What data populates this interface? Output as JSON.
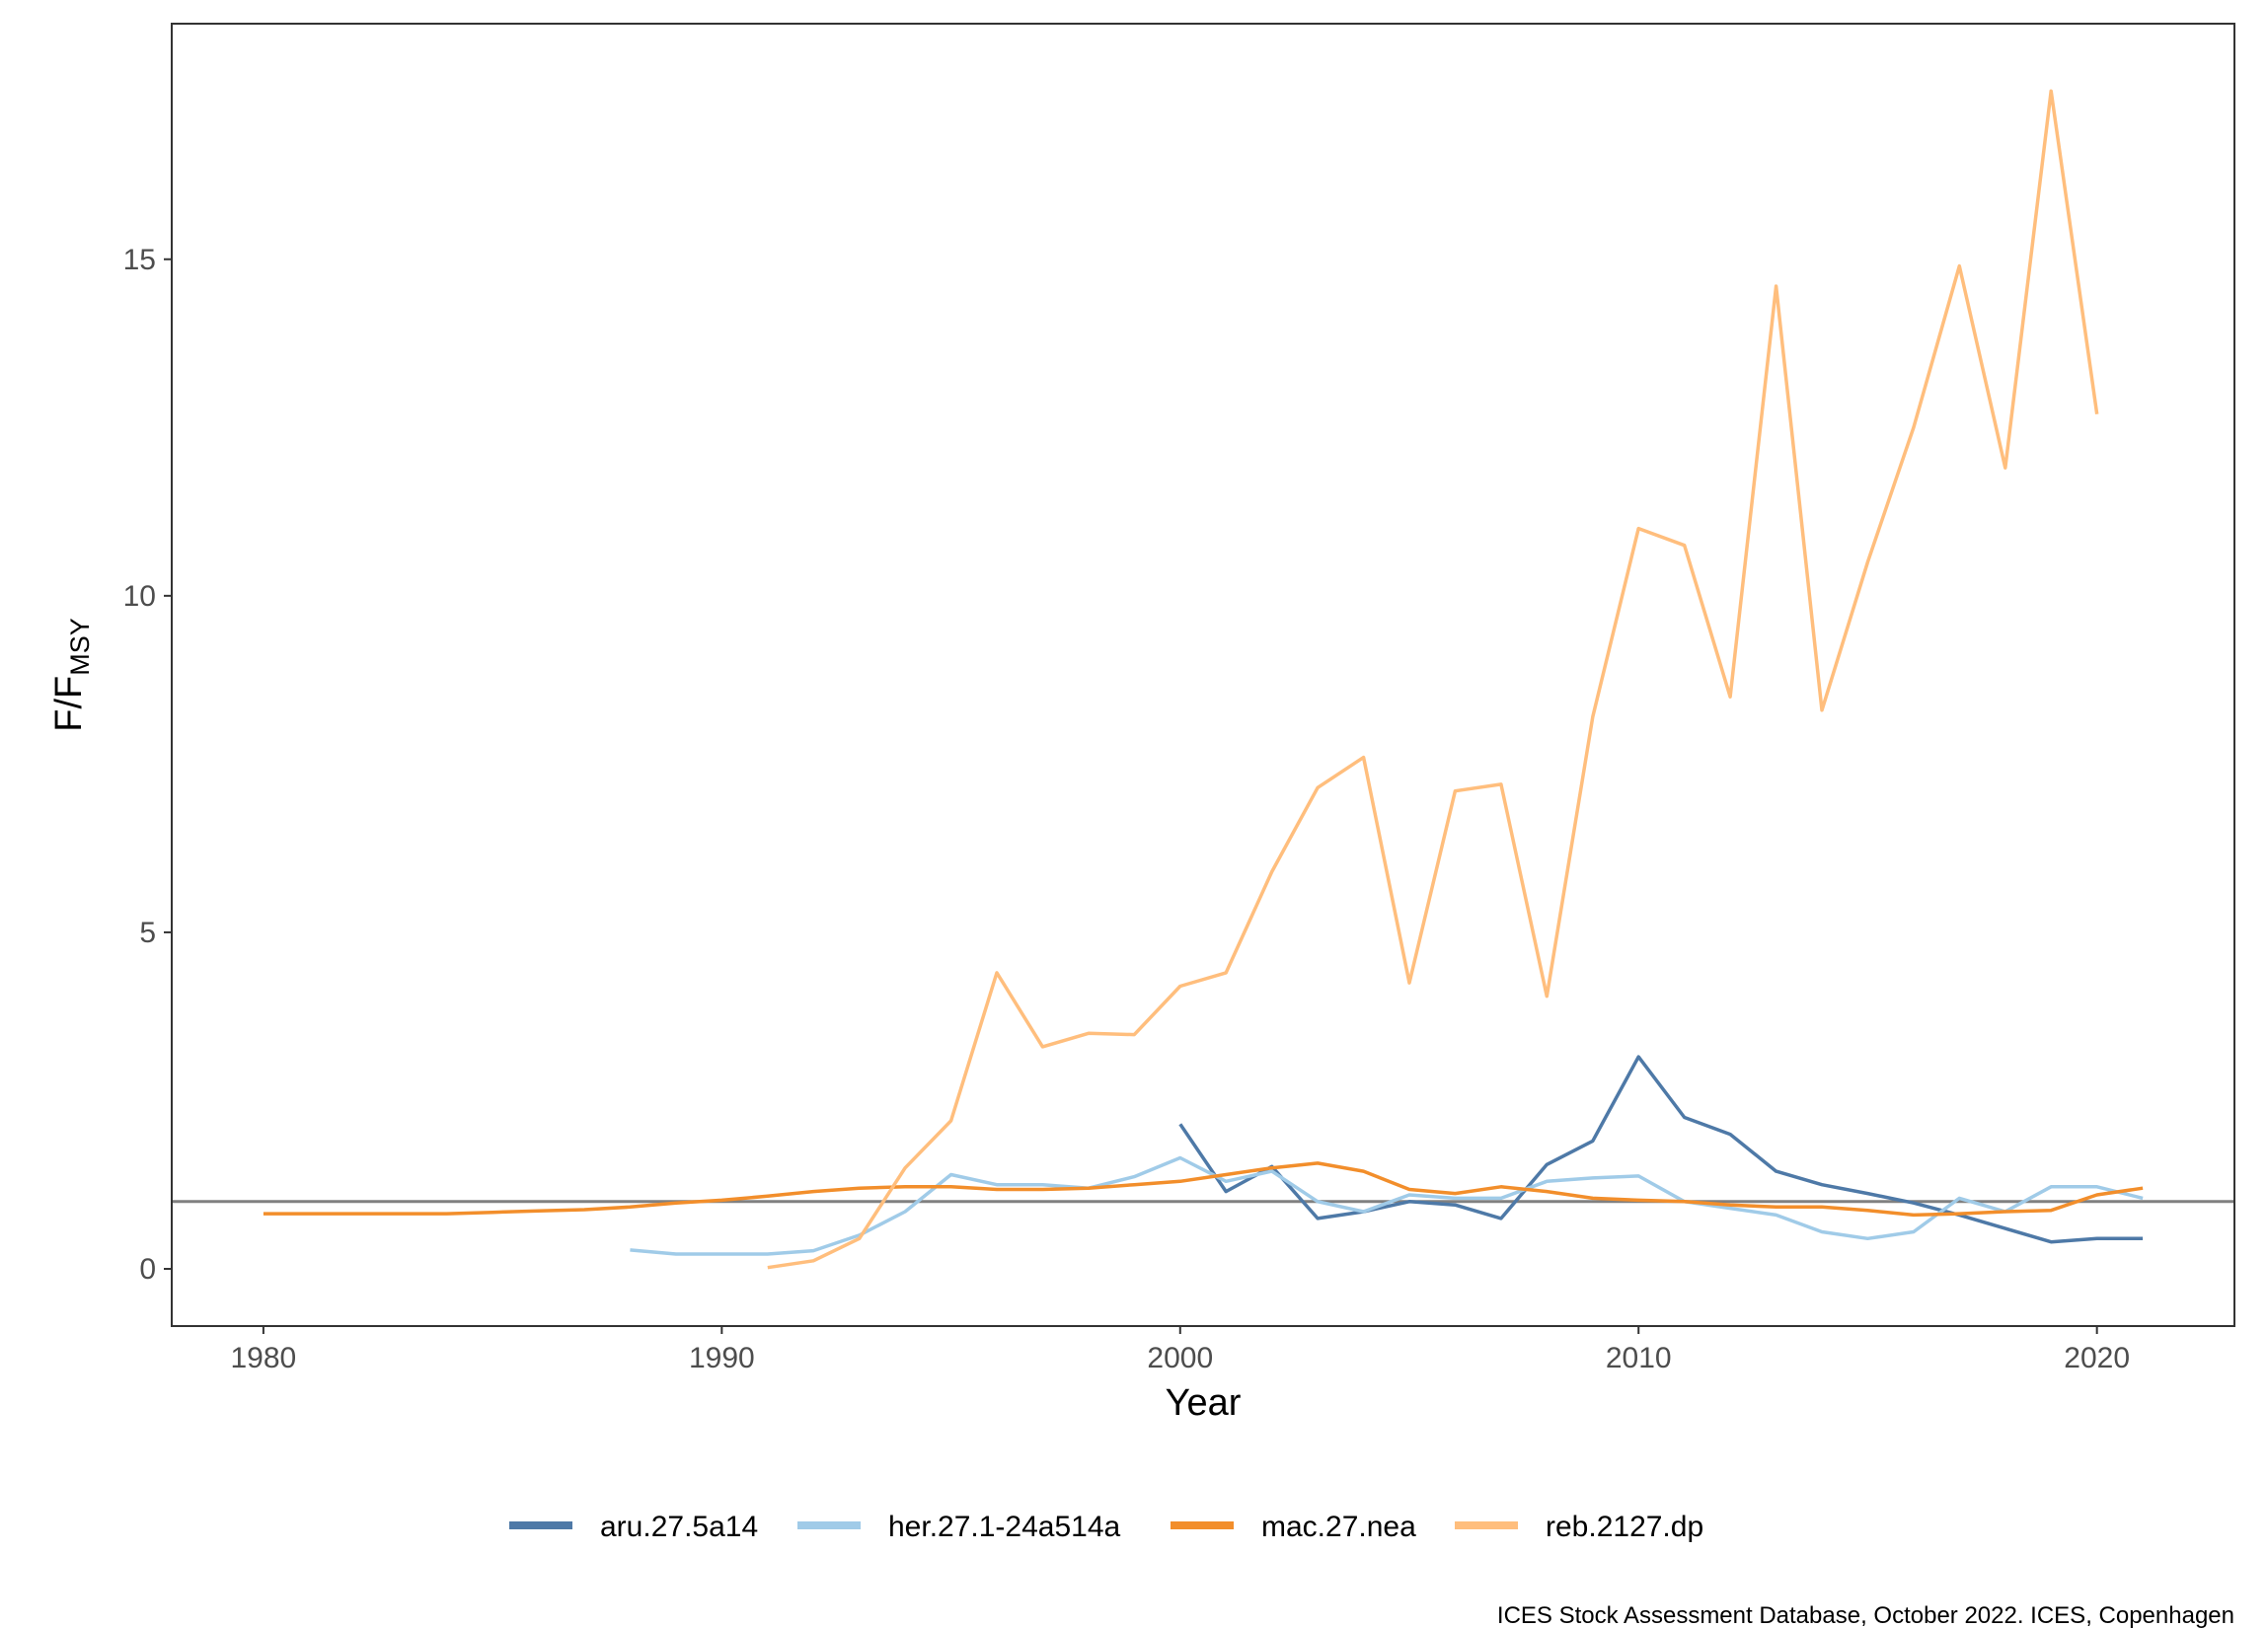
{
  "chart_data": {
    "type": "line",
    "title": "",
    "xlabel": "Year",
    "ylabel_main": "F/F",
    "ylabel_sub": "MSY",
    "xlim": [
      1978,
      2023
    ],
    "ylim": [
      -0.85,
      18.5
    ],
    "xticks": [
      1980,
      1990,
      2000,
      2010,
      2020
    ],
    "yticks": [
      0,
      5,
      10,
      15
    ],
    "grid": false,
    "reference_line": {
      "y": 1,
      "color": "#808080"
    },
    "legend_position": "bottom",
    "series": [
      {
        "name": "aru.27.5a14",
        "color": "#4e79a7",
        "x": [
          2000,
          2001,
          2002,
          2003,
          2004,
          2005,
          2006,
          2007,
          2008,
          2009,
          2010,
          2011,
          2012,
          2013,
          2014,
          2015,
          2016,
          2017,
          2018,
          2019,
          2020,
          2021
        ],
        "y": [
          2.15,
          1.15,
          1.52,
          0.75,
          0.85,
          1.0,
          0.95,
          0.75,
          1.55,
          1.9,
          3.15,
          2.25,
          2.0,
          1.45,
          1.25,
          1.12,
          0.98,
          0.8,
          0.6,
          0.4,
          0.45,
          0.45
        ]
      },
      {
        "name": "her.27.1-24a514a",
        "color": "#a0cbe8",
        "x": [
          1988,
          1989,
          1990,
          1991,
          1992,
          1993,
          1994,
          1995,
          1996,
          1997,
          1998,
          1999,
          2000,
          2001,
          2002,
          2003,
          2004,
          2005,
          2006,
          2007,
          2008,
          2009,
          2010,
          2011,
          2012,
          2013,
          2014,
          2015,
          2016,
          2017,
          2018,
          2019,
          2020,
          2021
        ],
        "y": [
          0.28,
          0.22,
          0.22,
          0.22,
          0.27,
          0.5,
          0.85,
          1.4,
          1.25,
          1.25,
          1.2,
          1.37,
          1.65,
          1.3,
          1.45,
          1.0,
          0.85,
          1.1,
          1.05,
          1.05,
          1.3,
          1.35,
          1.38,
          1.0,
          0.9,
          0.8,
          0.55,
          0.45,
          0.55,
          1.05,
          0.85,
          1.22,
          1.22,
          1.05
        ]
      },
      {
        "name": "mac.27.nea",
        "color": "#f28e2b",
        "x": [
          1980,
          1981,
          1982,
          1983,
          1984,
          1985,
          1986,
          1987,
          1988,
          1989,
          1990,
          1991,
          1992,
          1993,
          1994,
          1995,
          1996,
          1997,
          1998,
          1999,
          2000,
          2001,
          2002,
          2003,
          2004,
          2005,
          2006,
          2007,
          2008,
          2009,
          2010,
          2011,
          2012,
          2013,
          2014,
          2015,
          2016,
          2017,
          2018,
          2019,
          2020,
          2021
        ],
        "y": [
          0.82,
          0.82,
          0.82,
          0.82,
          0.82,
          0.84,
          0.86,
          0.88,
          0.92,
          0.98,
          1.02,
          1.08,
          1.15,
          1.2,
          1.22,
          1.22,
          1.18,
          1.18,
          1.2,
          1.25,
          1.3,
          1.4,
          1.5,
          1.57,
          1.45,
          1.18,
          1.12,
          1.22,
          1.15,
          1.05,
          1.02,
          1.0,
          0.95,
          0.92,
          0.92,
          0.87,
          0.8,
          0.82,
          0.85,
          0.87,
          1.1,
          1.2
        ]
      },
      {
        "name": "reb.2127.dp",
        "color": "#ffbe7d",
        "x": [
          1991,
          1992,
          1993,
          1994,
          1995,
          1996,
          1997,
          1998,
          1999,
          2000,
          2001,
          2002,
          2003,
          2004,
          2005,
          2006,
          2007,
          2008,
          2009,
          2010,
          2011,
          2012,
          2013,
          2014,
          2015,
          2016,
          2017,
          2018,
          2019,
          2020
        ],
        "y": [
          0.02,
          0.12,
          0.45,
          1.5,
          2.2,
          4.4,
          3.3,
          3.5,
          3.48,
          4.2,
          4.4,
          5.9,
          7.15,
          7.6,
          4.25,
          7.1,
          7.2,
          4.05,
          8.2,
          11.0,
          10.75,
          8.5,
          14.6,
          8.3,
          10.5,
          12.5,
          14.9,
          11.9,
          17.5,
          12.7
        ]
      }
    ]
  },
  "caption": "ICES Stock Assessment Database, October 2022. ICES, Copenhagen"
}
